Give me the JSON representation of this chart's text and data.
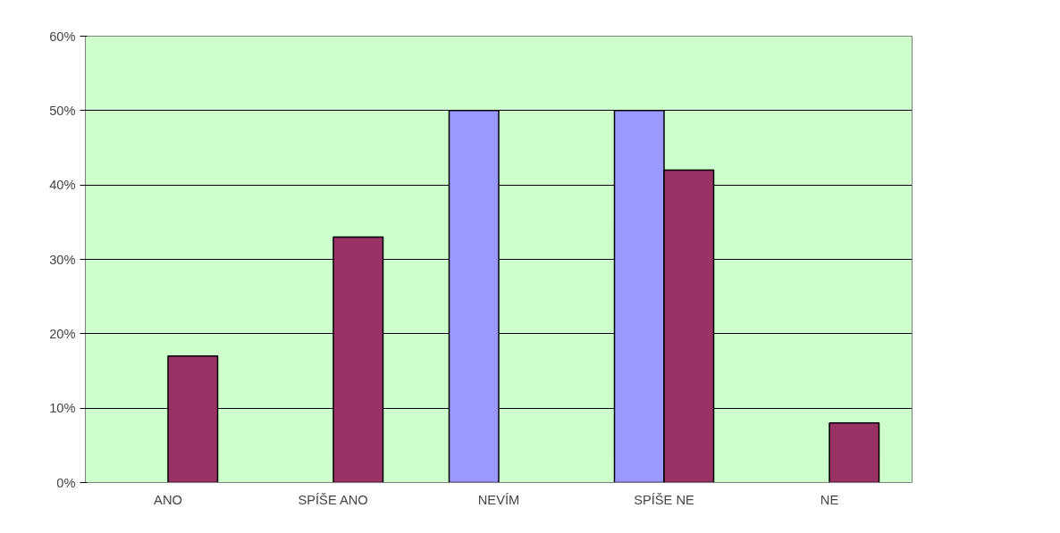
{
  "chart_data": {
    "type": "bar",
    "categories": [
      "ANO",
      "SPÍŠE ANO",
      "NEVÍM",
      "SPÍŠE NE",
      "NE"
    ],
    "series": [
      {
        "color": "#9999ff",
        "values": [
          null,
          null,
          50,
          50,
          null
        ]
      },
      {
        "color": "#993366",
        "values": [
          17,
          33,
          null,
          42,
          8
        ]
      }
    ],
    "ylim": [
      0,
      60
    ],
    "yticks": [
      {
        "value": 0,
        "label": "0%"
      },
      {
        "value": 10,
        "label": "10%"
      },
      {
        "value": 20,
        "label": "20%"
      },
      {
        "value": 30,
        "label": "30%"
      },
      {
        "value": 40,
        "label": "40%"
      },
      {
        "value": 50,
        "label": "50%"
      },
      {
        "value": 60,
        "label": "60%"
      }
    ],
    "grid": "y"
  }
}
